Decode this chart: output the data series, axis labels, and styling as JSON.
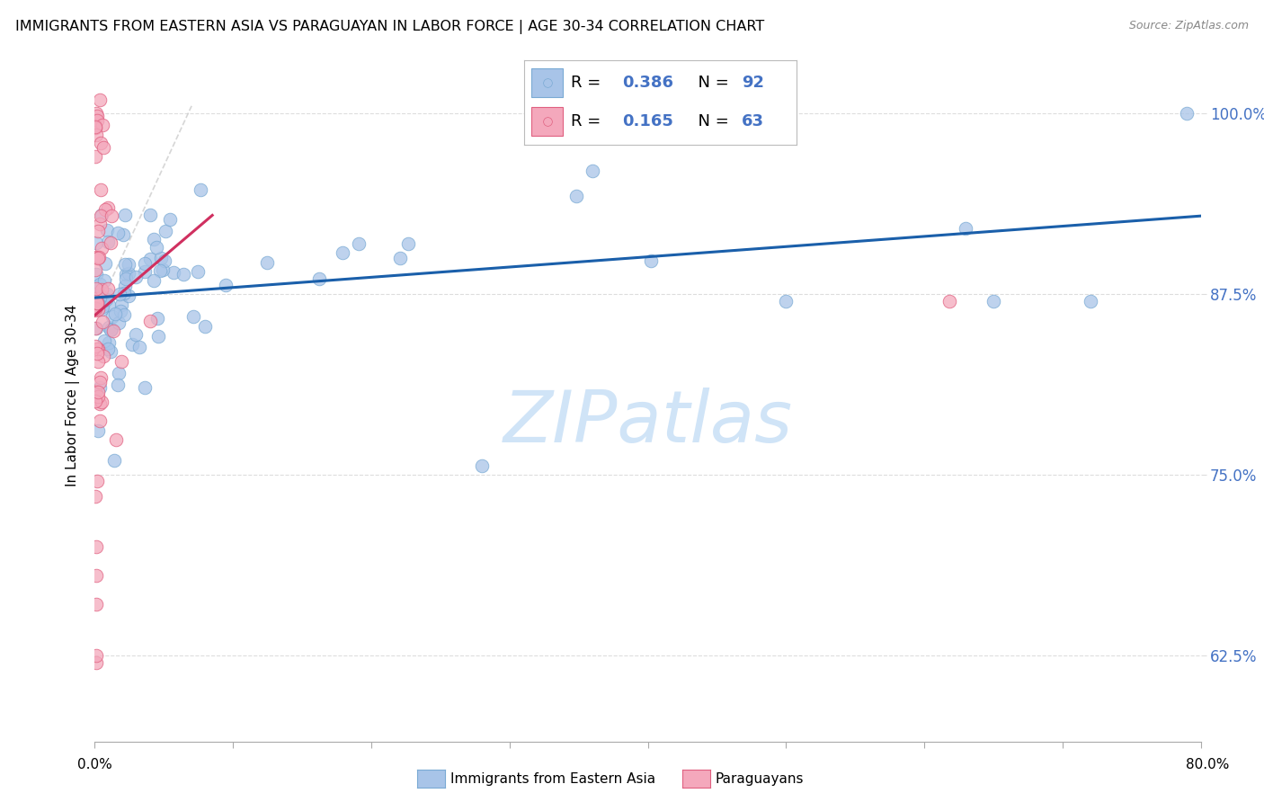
{
  "title": "IMMIGRANTS FROM EASTERN ASIA VS PARAGUAYAN IN LABOR FORCE | AGE 30-34 CORRELATION CHART",
  "source": "Source: ZipAtlas.com",
  "ylabel": "In Labor Force | Age 30-34",
  "yticks": [
    0.625,
    0.75,
    0.875,
    1.0
  ],
  "ytick_labels": [
    "62.5%",
    "75.0%",
    "87.5%",
    "100.0%"
  ],
  "xlim": [
    0.0,
    0.8
  ],
  "ylim": [
    0.565,
    1.045
  ],
  "color_blue": "#a8c4e8",
  "color_blue_edge": "#7aaad4",
  "color_blue_line": "#1a5faa",
  "color_pink": "#f4a8bc",
  "color_pink_edge": "#e06080",
  "color_pink_line": "#d03060",
  "color_tick": "#4472c4",
  "watermark_color": "#d0e4f7",
  "grid_color": "#dddddd",
  "bottom_axis_color": "#aaaaaa"
}
